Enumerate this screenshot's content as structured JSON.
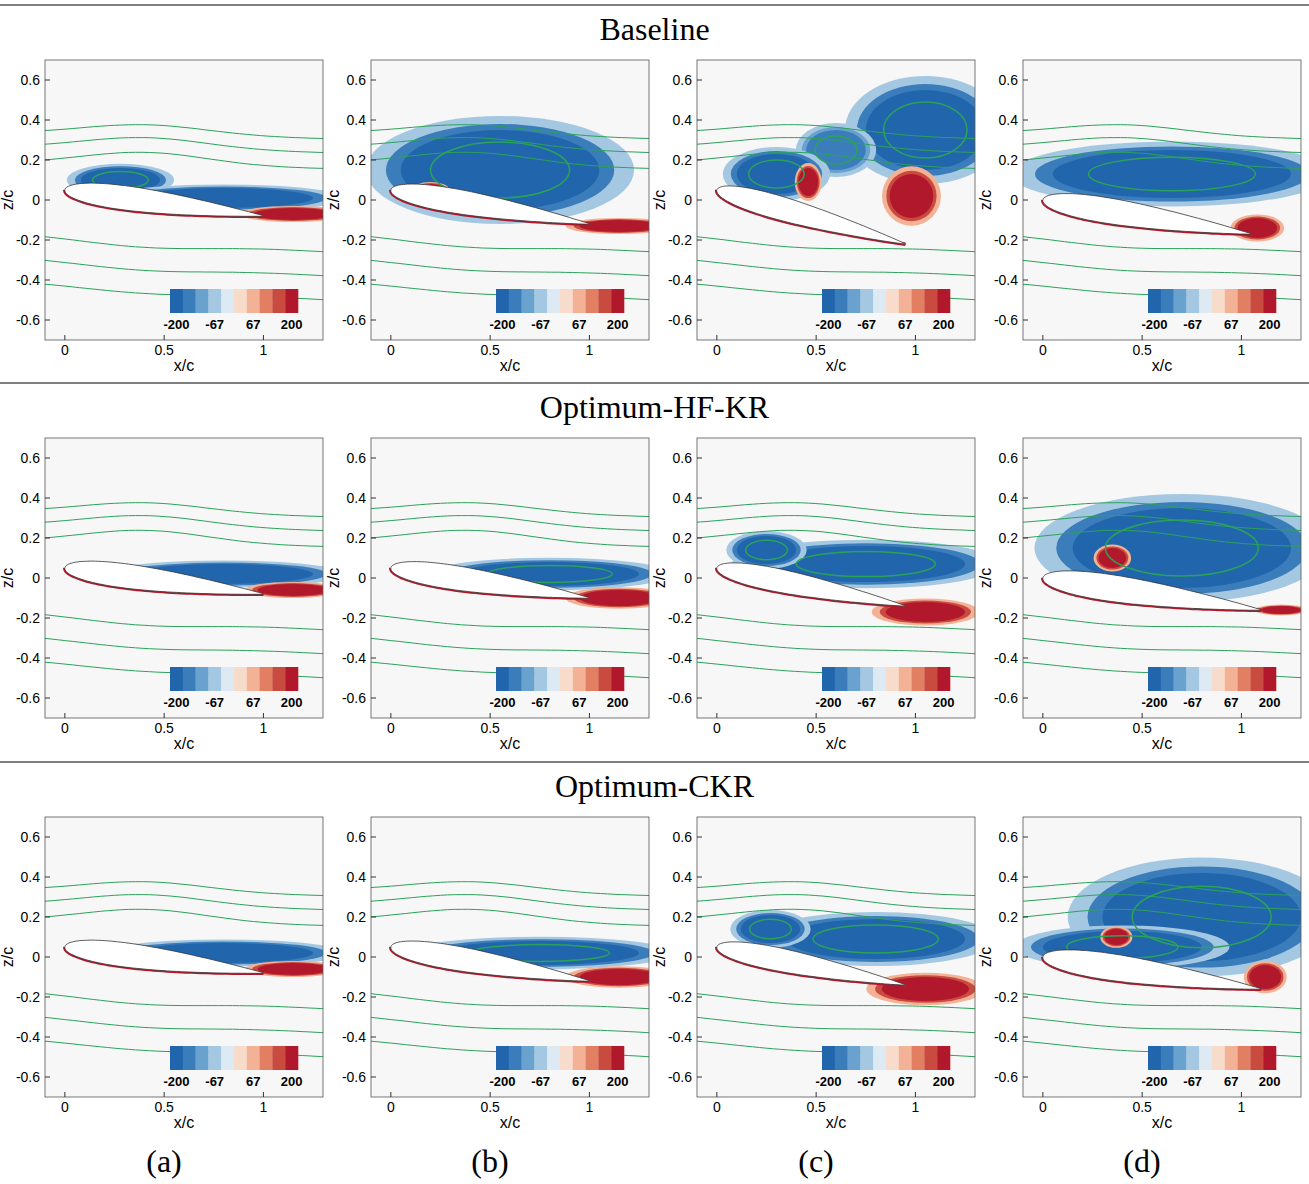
{
  "row_titles": [
    "Baseline",
    "Optimum-HF-KR",
    "Optimum-CKR"
  ],
  "column_labels": [
    "(a)",
    "(b)",
    "(c)",
    "(d)"
  ],
  "chart_data": [
    {
      "type": "contour",
      "xlabel": "x/c",
      "ylabel": "z/c",
      "xlim": [
        -0.1,
        1.3
      ],
      "ylim": [
        -0.7,
        0.7
      ],
      "xticks": [
        0,
        0.5,
        1
      ],
      "yticks": [
        -0.6,
        -0.4,
        -0.2,
        0,
        0.2,
        0.4,
        0.6
      ],
      "colorbar": {
        "range": [
          -200,
          200
        ],
        "ticks": [
          -200,
          -67,
          67,
          200
        ]
      },
      "airfoil": {
        "leading_edge": [
          0,
          0.05
        ],
        "trailing_edge": [
          1.0,
          -0.08
        ]
      },
      "regions": [
        {
          "x": 0.28,
          "z": 0.1,
          "rx": 0.2,
          "rz": 0.06,
          "value": -200
        },
        {
          "x": 0.8,
          "z": 0.01,
          "rx": 0.45,
          "rz": 0.05,
          "value": -200
        },
        {
          "x": 1.15,
          "z": -0.07,
          "rx": 0.2,
          "rz": 0.03,
          "value": 200
        }
      ]
    },
    {
      "type": "contour",
      "xlabel": "x/c",
      "ylabel": "z/c",
      "xlim": [
        -0.1,
        1.3
      ],
      "ylim": [
        -0.7,
        0.7
      ],
      "xticks": [
        0,
        0.5,
        1
      ],
      "yticks": [
        -0.6,
        -0.4,
        -0.2,
        0,
        0.2,
        0.4,
        0.6
      ],
      "colorbar": {
        "range": [
          -200,
          200
        ],
        "ticks": [
          -200,
          -67,
          67,
          200
        ]
      },
      "airfoil": {
        "leading_edge": [
          0,
          0.05
        ],
        "trailing_edge": [
          1.0,
          -0.12
        ]
      },
      "regions": [
        {
          "x": 0.55,
          "z": 0.15,
          "rx": 0.5,
          "rz": 0.2,
          "value": -200
        },
        {
          "x": 0.2,
          "z": 0.05,
          "rx": 0.07,
          "rz": 0.03,
          "value": 200
        },
        {
          "x": 1.15,
          "z": -0.13,
          "rx": 0.2,
          "rz": 0.03,
          "value": 200
        }
      ]
    },
    {
      "type": "contour",
      "xlabel": "x/c",
      "ylabel": "z/c",
      "xlim": [
        -0.1,
        1.3
      ],
      "ylim": [
        -0.7,
        0.7
      ],
      "xticks": [
        0,
        0.5,
        1
      ],
      "yticks": [
        -0.6,
        -0.4,
        -0.2,
        0,
        0.2,
        0.4,
        0.6
      ],
      "colorbar": {
        "range": [
          -200,
          200
        ],
        "ticks": [
          -200,
          -67,
          67,
          200
        ]
      },
      "airfoil": {
        "leading_edge": [
          0,
          0.05
        ],
        "trailing_edge": [
          0.95,
          -0.22
        ]
      },
      "regions": [
        {
          "x": 1.05,
          "z": 0.35,
          "rx": 0.3,
          "rz": 0.2,
          "value": -200
        },
        {
          "x": 0.6,
          "z": 0.25,
          "rx": 0.15,
          "rz": 0.1,
          "value": -150
        },
        {
          "x": 0.3,
          "z": 0.13,
          "rx": 0.2,
          "rz": 0.1,
          "value": -200
        },
        {
          "x": 0.46,
          "z": 0.09,
          "rx": 0.05,
          "rz": 0.07,
          "value": 200
        },
        {
          "x": 0.98,
          "z": 0.02,
          "rx": 0.11,
          "rz": 0.11,
          "value": 200
        }
      ]
    },
    {
      "type": "contour",
      "xlabel": "x/c",
      "ylabel": "z/c",
      "xlim": [
        -0.1,
        1.3
      ],
      "ylim": [
        -0.7,
        0.7
      ],
      "xticks": [
        0,
        0.5,
        1
      ],
      "yticks": [
        -0.6,
        -0.4,
        -0.2,
        0,
        0.2,
        0.4,
        0.6
      ],
      "colorbar": {
        "range": [
          -200,
          200
        ],
        "ticks": [
          -200,
          -67,
          67,
          200
        ]
      },
      "airfoil": {
        "leading_edge": [
          0,
          0.0
        ],
        "trailing_edge": [
          1.05,
          -0.17
        ]
      },
      "regions": [
        {
          "x": 0.65,
          "z": 0.13,
          "rx": 0.6,
          "rz": 0.12,
          "value": -200
        },
        {
          "x": 1.08,
          "z": -0.14,
          "rx": 0.1,
          "rz": 0.05,
          "value": 200
        }
      ]
    },
    {
      "type": "contour",
      "xlabel": "x/c",
      "ylabel": "z/c",
      "xlim": [
        -0.1,
        1.3
      ],
      "ylim": [
        -0.7,
        0.7
      ],
      "xticks": [
        0,
        0.5,
        1
      ],
      "yticks": [
        -0.6,
        -0.4,
        -0.2,
        0,
        0.2,
        0.4,
        0.6
      ],
      "colorbar": {
        "range": [
          -200,
          200
        ],
        "ticks": [
          -200,
          -67,
          67,
          200
        ]
      },
      "airfoil": {
        "leading_edge": [
          0,
          0.05
        ],
        "trailing_edge": [
          1.0,
          -0.08
        ]
      },
      "regions": [
        {
          "x": 0.8,
          "z": 0.02,
          "rx": 0.45,
          "rz": 0.05,
          "value": -200
        },
        {
          "x": 1.15,
          "z": -0.06,
          "rx": 0.18,
          "rz": 0.03,
          "value": 200
        }
      ]
    },
    {
      "type": "contour",
      "xlabel": "x/c",
      "ylabel": "z/c",
      "xlim": [
        -0.1,
        1.3
      ],
      "ylim": [
        -0.7,
        0.7
      ],
      "xticks": [
        0,
        0.5,
        1
      ],
      "yticks": [
        -0.6,
        -0.4,
        -0.2,
        0,
        0.2,
        0.4,
        0.6
      ],
      "colorbar": {
        "range": [
          -200,
          200
        ],
        "ticks": [
          -200,
          -67,
          67,
          200
        ]
      },
      "airfoil": {
        "leading_edge": [
          0,
          0.05
        ],
        "trailing_edge": [
          1.0,
          -0.1
        ]
      },
      "regions": [
        {
          "x": 0.8,
          "z": 0.02,
          "rx": 0.45,
          "rz": 0.06,
          "value": -200
        },
        {
          "x": 1.15,
          "z": -0.1,
          "rx": 0.2,
          "rz": 0.04,
          "value": 200
        }
      ]
    },
    {
      "type": "contour",
      "xlabel": "x/c",
      "ylabel": "z/c",
      "xlim": [
        -0.1,
        1.3
      ],
      "ylim": [
        -0.7,
        0.7
      ],
      "xticks": [
        0,
        0.5,
        1
      ],
      "yticks": [
        -0.6,
        -0.4,
        -0.2,
        0,
        0.2,
        0.4,
        0.6
      ],
      "colorbar": {
        "range": [
          -200,
          200
        ],
        "ticks": [
          -200,
          -67,
          67,
          200
        ]
      },
      "airfoil": {
        "leading_edge": [
          0,
          0.05
        ],
        "trailing_edge": [
          0.95,
          -0.14
        ]
      },
      "regions": [
        {
          "x": 0.75,
          "z": 0.07,
          "rx": 0.5,
          "rz": 0.09,
          "value": -200
        },
        {
          "x": 0.25,
          "z": 0.14,
          "rx": 0.15,
          "rz": 0.07,
          "value": -200
        },
        {
          "x": 1.05,
          "z": -0.17,
          "rx": 0.2,
          "rz": 0.05,
          "value": 200
        }
      ]
    },
    {
      "type": "contour",
      "xlabel": "x/c",
      "ylabel": "z/c",
      "xlim": [
        -0.1,
        1.3
      ],
      "ylim": [
        -0.7,
        0.7
      ],
      "xticks": [
        0,
        0.5,
        1
      ],
      "yticks": [
        -0.6,
        -0.4,
        -0.2,
        0,
        0.2,
        0.4,
        0.6
      ],
      "colorbar": {
        "range": [
          -200,
          200
        ],
        "ticks": [
          -200,
          -67,
          67,
          200
        ]
      },
      "airfoil": {
        "leading_edge": [
          0,
          0.0
        ],
        "trailing_edge": [
          1.1,
          -0.16
        ]
      },
      "regions": [
        {
          "x": 0.7,
          "z": 0.15,
          "rx": 0.55,
          "rz": 0.2,
          "value": -200
        },
        {
          "x": 0.35,
          "z": 0.1,
          "rx": 0.07,
          "rz": 0.05,
          "value": 200
        },
        {
          "x": 1.2,
          "z": -0.16,
          "rx": 0.1,
          "rz": 0.02,
          "value": 200
        }
      ]
    },
    {
      "type": "contour",
      "xlabel": "x/c",
      "ylabel": "z/c",
      "xlim": [
        -0.1,
        1.3
      ],
      "ylim": [
        -0.7,
        0.7
      ],
      "xticks": [
        0,
        0.5,
        1
      ],
      "yticks": [
        -0.6,
        -0.4,
        -0.2,
        0,
        0.2,
        0.4,
        0.6
      ],
      "colorbar": {
        "range": [
          -200,
          200
        ],
        "ticks": [
          -200,
          -67,
          67,
          200
        ]
      },
      "airfoil": {
        "leading_edge": [
          0,
          0.05
        ],
        "trailing_edge": [
          1.0,
          -0.08
        ]
      },
      "regions": [
        {
          "x": 0.8,
          "z": 0.02,
          "rx": 0.45,
          "rz": 0.05,
          "value": -200
        },
        {
          "x": 1.15,
          "z": -0.06,
          "rx": 0.18,
          "rz": 0.03,
          "value": 200
        }
      ]
    },
    {
      "type": "contour",
      "xlabel": "x/c",
      "ylabel": "z/c",
      "xlim": [
        -0.1,
        1.3
      ],
      "ylim": [
        -0.7,
        0.7
      ],
      "xticks": [
        0,
        0.5,
        1
      ],
      "yticks": [
        -0.6,
        -0.4,
        -0.2,
        0,
        0.2,
        0.4,
        0.6
      ],
      "colorbar": {
        "range": [
          -200,
          200
        ],
        "ticks": [
          -200,
          -67,
          67,
          200
        ]
      },
      "airfoil": {
        "leading_edge": [
          0,
          0.05
        ],
        "trailing_edge": [
          1.0,
          -0.12
        ]
      },
      "regions": [
        {
          "x": 0.75,
          "z": 0.02,
          "rx": 0.5,
          "rz": 0.06,
          "value": -200
        },
        {
          "x": 1.15,
          "z": -0.1,
          "rx": 0.2,
          "rz": 0.04,
          "value": 200
        }
      ]
    },
    {
      "type": "contour",
      "xlabel": "x/c",
      "ylabel": "z/c",
      "xlim": [
        -0.1,
        1.3
      ],
      "ylim": [
        -0.7,
        0.7
      ],
      "xticks": [
        0,
        0.5,
        1
      ],
      "yticks": [
        -0.6,
        -0.4,
        -0.2,
        0,
        0.2,
        0.4,
        0.6
      ],
      "colorbar": {
        "range": [
          -200,
          200
        ],
        "ticks": [
          -200,
          -67,
          67,
          200
        ]
      },
      "airfoil": {
        "leading_edge": [
          0,
          0.05
        ],
        "trailing_edge": [
          0.95,
          -0.14
        ]
      },
      "regions": [
        {
          "x": 0.8,
          "z": 0.09,
          "rx": 0.45,
          "rz": 0.1,
          "value": -200
        },
        {
          "x": 0.27,
          "z": 0.14,
          "rx": 0.15,
          "rz": 0.07,
          "value": -200
        },
        {
          "x": 1.05,
          "z": -0.16,
          "rx": 0.22,
          "rz": 0.06,
          "value": 200
        }
      ]
    },
    {
      "type": "contour",
      "xlabel": "x/c",
      "ylabel": "z/c",
      "xlim": [
        -0.1,
        1.3
      ],
      "ylim": [
        -0.7,
        0.7
      ],
      "xticks": [
        0,
        0.5,
        1
      ],
      "yticks": [
        -0.6,
        -0.4,
        -0.2,
        0,
        0.2,
        0.4,
        0.6
      ],
      "colorbar": {
        "range": [
          -200,
          200
        ],
        "ticks": [
          -200,
          -67,
          67,
          200
        ]
      },
      "airfoil": {
        "leading_edge": [
          0,
          0.0
        ],
        "trailing_edge": [
          1.1,
          -0.16
        ]
      },
      "regions": [
        {
          "x": 0.8,
          "z": 0.2,
          "rx": 0.5,
          "rz": 0.22,
          "value": -200
        },
        {
          "x": 0.4,
          "z": 0.05,
          "rx": 0.4,
          "rz": 0.08,
          "value": -200
        },
        {
          "x": 0.37,
          "z": 0.1,
          "rx": 0.06,
          "rz": 0.04,
          "value": 200
        },
        {
          "x": 1.12,
          "z": -0.1,
          "rx": 0.08,
          "rz": 0.06,
          "value": 200
        }
      ]
    }
  ]
}
